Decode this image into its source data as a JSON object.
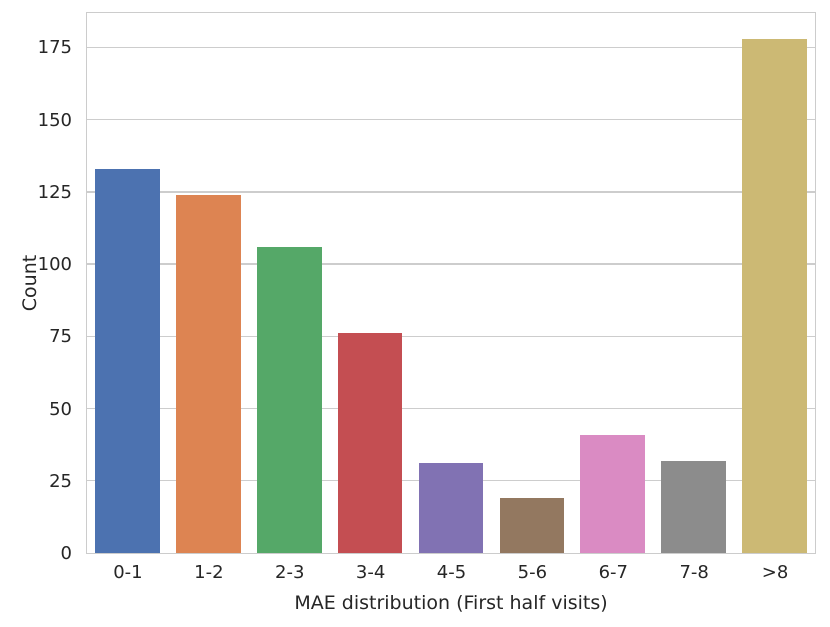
{
  "chart_data": {
    "type": "bar",
    "title": "",
    "xlabel": "MAE distribution (First half visits)",
    "ylabel": "Count",
    "categories": [
      "0-1",
      "1-2",
      "2-3",
      "3-4",
      "4-5",
      "5-6",
      "6-7",
      "7-8",
      ">8"
    ],
    "values": [
      133,
      124,
      106,
      76,
      31,
      19,
      41,
      32,
      178
    ],
    "bar_colors": [
      "#4c72b0",
      "#dd8452",
      "#55a868",
      "#c44e52",
      "#8172b3",
      "#937860",
      "#da8bc3",
      "#8c8c8c",
      "#ccb974"
    ],
    "ylim": [
      0,
      186.9
    ],
    "yticks": [
      0,
      25,
      50,
      75,
      100,
      125,
      150,
      175
    ],
    "grid": "horizontal",
    "legend": "none",
    "style": {
      "background_color": "#ffffff",
      "grid_color": "#cdcdcd",
      "axes_edge_color": "#cccccc",
      "text_color": "#262626"
    }
  }
}
